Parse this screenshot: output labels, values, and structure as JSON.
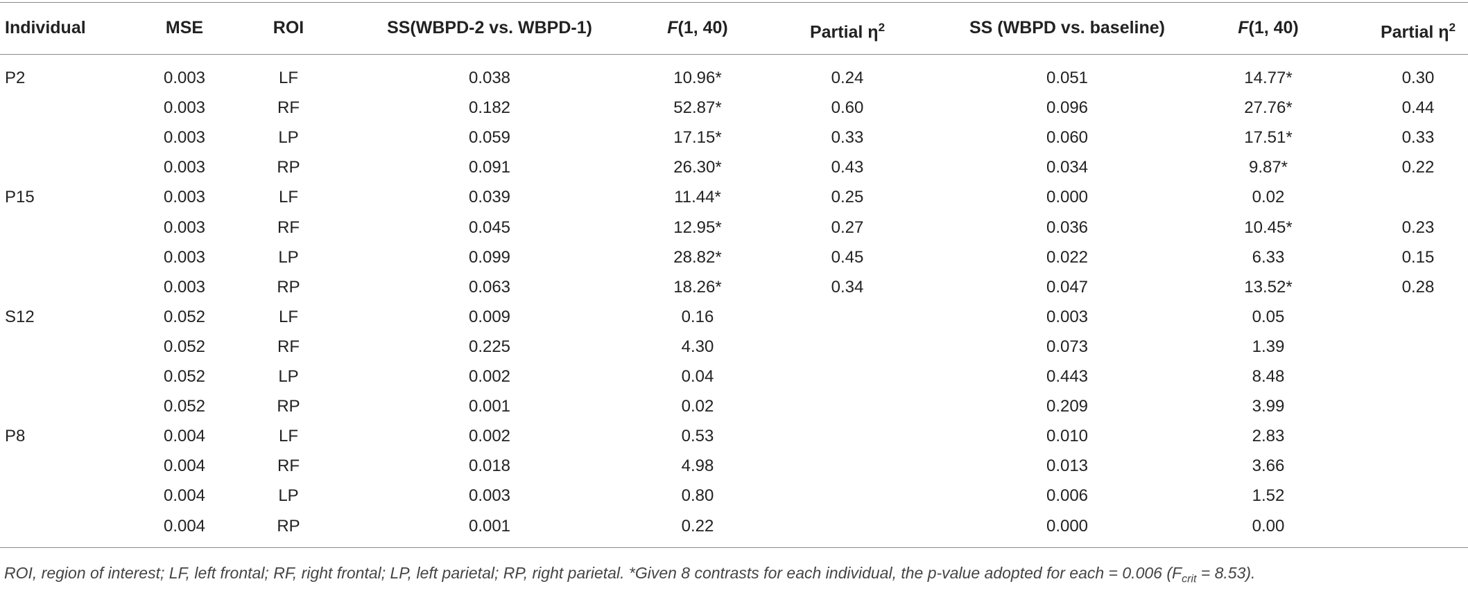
{
  "table": {
    "header": [
      "Individual",
      "MSE",
      "ROI",
      "SS(WBPD-2 vs. WBPD-1)",
      {
        "italic": "F",
        "text": "(1, 40)"
      },
      {
        "text": "Partial η",
        "sup": "2"
      },
      "SS (WBPD vs. baseline)",
      {
        "italic": "F",
        "text": "(1, 40)"
      },
      {
        "text": "Partial η",
        "sup": "2"
      }
    ],
    "groups": [
      {
        "individual": "P2",
        "rows": [
          [
            "0.003",
            "LF",
            "0.038",
            "10.96*",
            "0.24",
            "0.051",
            "14.77*",
            "0.30"
          ],
          [
            "0.003",
            "RF",
            "0.182",
            "52.87*",
            "0.60",
            "0.096",
            "27.76*",
            "0.44"
          ],
          [
            "0.003",
            "LP",
            "0.059",
            "17.15*",
            "0.33",
            "0.060",
            "17.51*",
            "0.33"
          ],
          [
            "0.003",
            "RP",
            "0.091",
            "26.30*",
            "0.43",
            "0.034",
            "9.87*",
            "0.22"
          ]
        ]
      },
      {
        "individual": "P15",
        "rows": [
          [
            "0.003",
            "LF",
            "0.039",
            "11.44*",
            "0.25",
            "0.000",
            "0.02",
            null
          ],
          [
            "0.003",
            "RF",
            "0.045",
            "12.95*",
            "0.27",
            "0.036",
            "10.45*",
            "0.23"
          ],
          [
            "0.003",
            "LP",
            "0.099",
            "28.82*",
            "0.45",
            "0.022",
            "6.33",
            "0.15"
          ],
          [
            "0.003",
            "RP",
            "0.063",
            "18.26*",
            "0.34",
            "0.047",
            "13.52*",
            "0.28"
          ]
        ]
      },
      {
        "individual": "S12",
        "rows": [
          [
            "0.052",
            "LF",
            "0.009",
            "0.16",
            null,
            "0.003",
            "0.05",
            null
          ],
          [
            "0.052",
            "RF",
            "0.225",
            "4.30",
            null,
            "0.073",
            "1.39",
            null
          ],
          [
            "0.052",
            "LP",
            "0.002",
            "0.04",
            null,
            "0.443",
            "8.48",
            null
          ],
          [
            "0.052",
            "RP",
            "0.001",
            "0.02",
            null,
            "0.209",
            "3.99",
            null
          ]
        ]
      },
      {
        "individual": "P8",
        "rows": [
          [
            "0.004",
            "LF",
            "0.002",
            "0.53",
            null,
            "0.010",
            "2.83",
            null
          ],
          [
            "0.004",
            "RF",
            "0.018",
            "4.98",
            null,
            "0.013",
            "3.66",
            null
          ],
          [
            "0.004",
            "LP",
            "0.003",
            "0.80",
            null,
            "0.006",
            "1.52",
            null
          ],
          [
            "0.004",
            "RP",
            "0.001",
            "0.22",
            null,
            "0.000",
            "0.00",
            null
          ]
        ]
      }
    ],
    "footnote": {
      "text": "ROI, region of interest; LF, left frontal; RF, right frontal; LP, left parietal; RP, right parietal. *Given 8 contrasts for each individual, the p-value adopted for each = 0.006 (",
      "f": "F",
      "sub": "crit",
      "end": " = 8.53)."
    }
  }
}
